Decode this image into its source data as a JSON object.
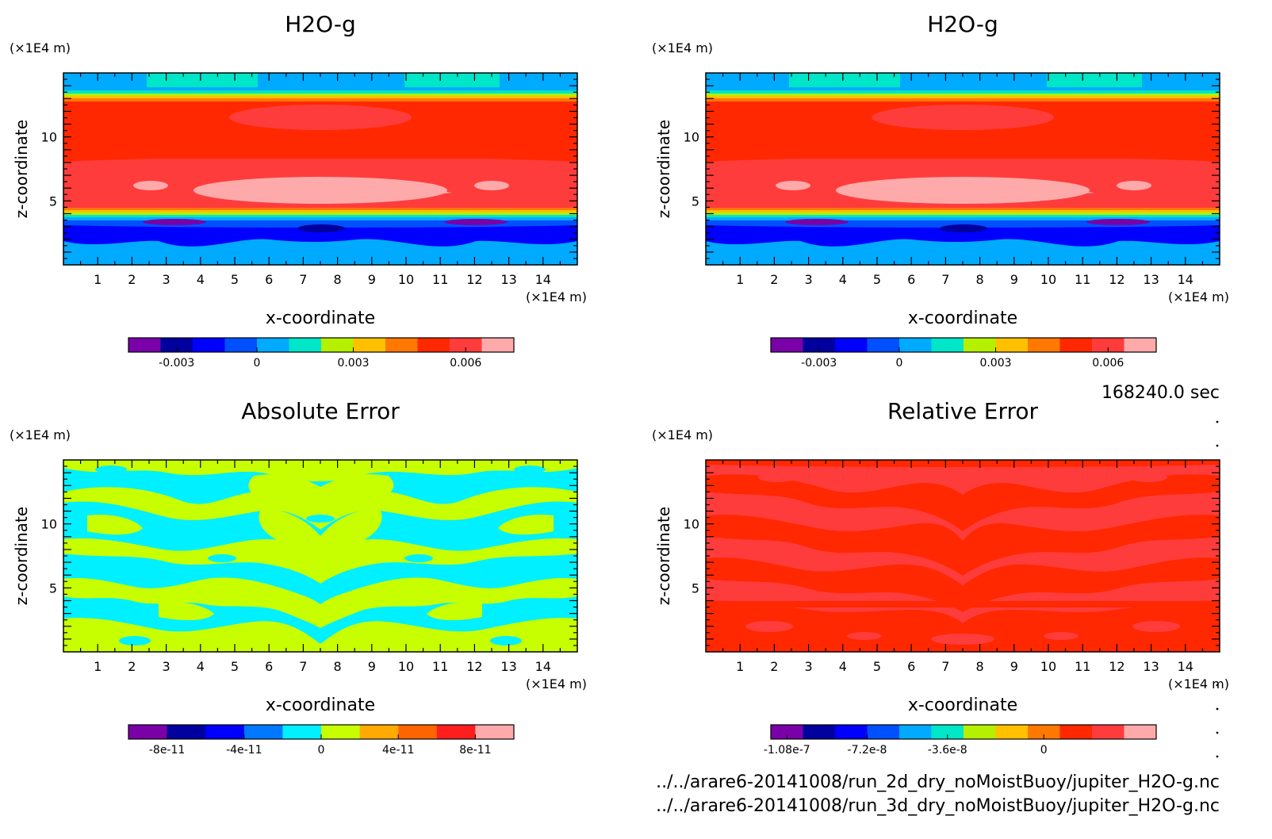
{
  "chart_data": [
    {
      "type": "heatmap",
      "title": "H2O-g",
      "xlabel": "x-coordinate",
      "ylabel": "z-coordinate",
      "x_unit": "(×1E4 m)",
      "y_unit": "(×1E4 m)",
      "x_ticks": [
        1,
        2,
        3,
        4,
        5,
        6,
        7,
        8,
        9,
        10,
        11,
        12,
        13,
        14
      ],
      "y_ticks": [
        5,
        10
      ],
      "xlim": [
        0,
        15
      ],
      "ylim": [
        0,
        15
      ],
      "colorbar": {
        "colors": [
          "#7a00a8",
          "#00009e",
          "#0000ff",
          "#0050ff",
          "#00aaff",
          "#00e6c8",
          "#b4f000",
          "#ffc000",
          "#ff7800",
          "#ff2800",
          "#ff3c3c",
          "#ffaaaa"
        ],
        "tick_labels": [
          "-0.003",
          "0",
          "0.003",
          "0.006"
        ]
      }
    },
    {
      "type": "heatmap",
      "title": "H2O-g",
      "xlabel": "x-coordinate",
      "ylabel": "z-coordinate",
      "x_unit": "(×1E4 m)",
      "y_unit": "(×1E4 m)",
      "x_ticks": [
        1,
        2,
        3,
        4,
        5,
        6,
        7,
        8,
        9,
        10,
        11,
        12,
        13,
        14
      ],
      "y_ticks": [
        5,
        10
      ],
      "xlim": [
        0,
        15
      ],
      "ylim": [
        0,
        15
      ],
      "colorbar": {
        "colors": [
          "#7a00a8",
          "#00009e",
          "#0000ff",
          "#0050ff",
          "#00aaff",
          "#00e6c8",
          "#b4f000",
          "#ffc000",
          "#ff7800",
          "#ff2800",
          "#ff3c3c",
          "#ffaaaa"
        ],
        "tick_labels": [
          "-0.003",
          "0",
          "0.003",
          "0.006"
        ]
      }
    },
    {
      "type": "heatmap",
      "title": "Absolute Error",
      "xlabel": "x-coordinate",
      "ylabel": "z-coordinate",
      "x_unit": "(×1E4 m)",
      "y_unit": "(×1E4 m)",
      "x_ticks": [
        1,
        2,
        3,
        4,
        5,
        6,
        7,
        8,
        9,
        10,
        11,
        12,
        13,
        14
      ],
      "y_ticks": [
        5,
        10
      ],
      "xlim": [
        0,
        15
      ],
      "ylim": [
        0,
        15
      ],
      "colorbar": {
        "colors": [
          "#7a00a8",
          "#00009e",
          "#0000ff",
          "#0078ff",
          "#00f0ff",
          "#c8ff00",
          "#ffaa00",
          "#ff6400",
          "#ff1e1e",
          "#ffaaaa"
        ],
        "tick_labels": [
          "-8e-11",
          "-4e-11",
          "0",
          "4e-11",
          "8e-11"
        ]
      }
    },
    {
      "type": "heatmap",
      "title": "Relative Error",
      "xlabel": "x-coordinate",
      "ylabel": "z-coordinate",
      "x_unit": "(×1E4 m)",
      "y_unit": "(×1E4 m)",
      "x_ticks": [
        1,
        2,
        3,
        4,
        5,
        6,
        7,
        8,
        9,
        10,
        11,
        12,
        13,
        14
      ],
      "y_ticks": [
        5,
        10
      ],
      "xlim": [
        0,
        15
      ],
      "ylim": [
        0,
        15
      ],
      "colorbar": {
        "colors": [
          "#7a00a8",
          "#00009e",
          "#0000ff",
          "#0050ff",
          "#00aaff",
          "#00e6c8",
          "#b4f000",
          "#ffc000",
          "#ff7800",
          "#ff2800",
          "#ff3c3c",
          "#ffaaaa"
        ],
        "tick_labels": [
          "-1.08e-7",
          "-7.2e-8",
          "-3.6e-8",
          "0"
        ]
      }
    }
  ],
  "time_label": "168240.0 sec",
  "files": [
    "../../arare6-20141008/run_2d_dry_noMoistBuoy/jupiter_H2O-g.nc",
    "../../arare6-20141008/run_3d_dry_noMoistBuoy/jupiter_H2O-g.nc"
  ]
}
